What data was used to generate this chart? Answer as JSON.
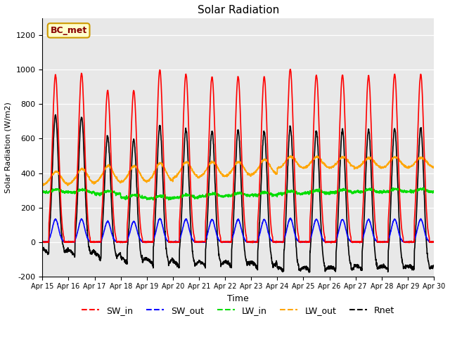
{
  "title": "Solar Radiation",
  "xlabel": "Time",
  "ylabel": "Solar Radiation (W/m2)",
  "ylim": [
    -200,
    1300
  ],
  "yticks": [
    -200,
    0,
    200,
    400,
    600,
    800,
    1000,
    1200
  ],
  "n_days": 15,
  "points_per_day": 144,
  "fig_bg_color": "#ffffff",
  "plot_bg_color": "#e8e8e8",
  "series": {
    "SW_in": {
      "color": "#ff0000",
      "lw": 1.2
    },
    "SW_out": {
      "color": "#0000ff",
      "lw": 1.2
    },
    "LW_in": {
      "color": "#00dd00",
      "lw": 1.2
    },
    "LW_out": {
      "color": "#ffa500",
      "lw": 1.2
    },
    "Rnet": {
      "color": "#000000",
      "lw": 1.2
    }
  },
  "label_box": {
    "text": "BC_met",
    "facecolor": "#ffffcc",
    "edgecolor": "#cc9900",
    "textcolor": "#880000",
    "fontsize": 9,
    "fontweight": "bold"
  },
  "xtick_labels": [
    "Apr 15",
    "Apr 16",
    "Apr 17",
    "Apr 18",
    "Apr 19",
    "Apr 20",
    "Apr 21",
    "Apr 22",
    "Apr 23",
    "Apr 24",
    "Apr 25",
    "Apr 26",
    "Apr 27",
    "Apr 28",
    "Apr 29",
    "Apr 30"
  ],
  "sw_peaks": [
    970,
    980,
    880,
    880,
    1000,
    975,
    960,
    960,
    960,
    1005,
    970,
    970,
    965,
    975,
    975
  ],
  "lw_in_base": [
    290,
    288,
    280,
    258,
    252,
    258,
    265,
    270,
    272,
    280,
    285,
    288,
    290,
    292,
    293
  ],
  "lw_out_base": [
    328,
    335,
    342,
    345,
    348,
    368,
    375,
    380,
    388,
    425,
    428,
    428,
    428,
    428,
    430
  ],
  "lw_out_peak_extra": [
    80,
    90,
    100,
    95,
    110,
    95,
    90,
    85,
    90,
    70,
    65,
    65,
    60,
    65,
    60
  ],
  "legend_entries": [
    "SW_in",
    "SW_out",
    "LW_in",
    "LW_out",
    "Rnet"
  ],
  "legend_colors": [
    "#ff0000",
    "#0000ff",
    "#00dd00",
    "#ffa500",
    "#000000"
  ]
}
